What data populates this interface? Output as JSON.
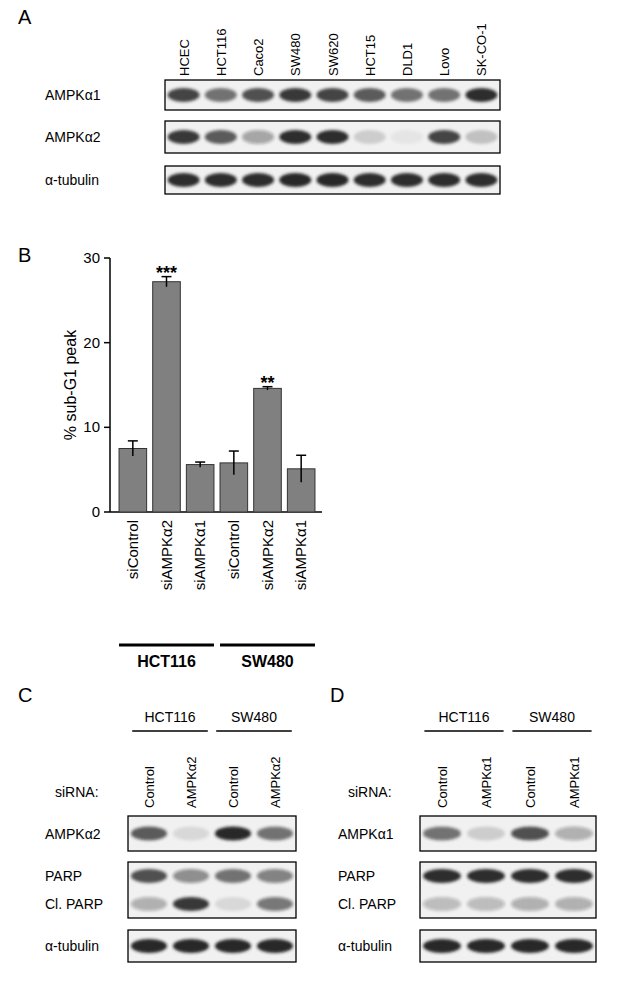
{
  "chart_data": {
    "type": "bar",
    "panel_label": "B",
    "y_label": "% sub-G1 peak",
    "categories": [
      "siControl",
      "siAMPKα2",
      "siAMPKα1",
      "siControl",
      "siAMPKα2",
      "siAMPKα1"
    ],
    "values": [
      7.5,
      27.2,
      5.6,
      5.8,
      14.6,
      5.1
    ],
    "errors": [
      0.9,
      0.6,
      0.3,
      1.4,
      0.2,
      1.6
    ],
    "significance": [
      null,
      "***",
      null,
      null,
      "**",
      null
    ],
    "groups": [
      {
        "name": "HCT116",
        "size": 3
      },
      {
        "name": "SW480",
        "size": 3
      }
    ],
    "color": "#808080",
    "ylim": [
      0,
      30
    ],
    "yticks": [
      0,
      10,
      20,
      30
    ]
  },
  "blots": [
    {
      "panel_label": "A",
      "groups": [
        {
          "lanes": [
            "HCEC",
            "HCT116",
            "Caco2",
            "SW480",
            "SW620",
            "HCT15",
            "DLD1",
            "Lovo",
            "SK-CO-1"
          ]
        }
      ],
      "rows": [
        {
          "bands": [
            {
              "label": "AMPKα1",
              "intensities": [
                0.8,
                0.6,
                0.75,
                0.85,
                0.8,
                0.7,
                0.6,
                0.6,
                0.9
              ]
            }
          ]
        },
        {
          "bands": [
            {
              "label": "AMPKα2",
              "intensities": [
                0.85,
                0.7,
                0.35,
                0.9,
                0.9,
                0.15,
                0.05,
                0.8,
                0.2
              ]
            }
          ]
        },
        {
          "bands": [
            {
              "label": "α-tubulin",
              "intensities": [
                0.9,
                0.9,
                0.9,
                0.95,
                0.95,
                0.9,
                0.9,
                0.9,
                0.9
              ]
            }
          ]
        }
      ]
    },
    {
      "panel_label": "C",
      "lane_title": "siRNA:",
      "groups": [
        {
          "name": "HCT116",
          "lanes": [
            "Control",
            "AMPKα2"
          ]
        },
        {
          "name": "SW480",
          "lanes": [
            "Control",
            "AMPKα2"
          ]
        }
      ],
      "rows": [
        {
          "bands": [
            {
              "label": "AMPKα2",
              "intensities": [
                0.7,
                0.1,
                0.95,
                0.6
              ]
            }
          ]
        },
        {
          "bands": [
            {
              "label": "PARP",
              "intensities": [
                0.75,
                0.45,
                0.6,
                0.5
              ]
            },
            {
              "label": "Cl. PARP",
              "intensities": [
                0.3,
                0.85,
                0.1,
                0.55
              ]
            }
          ]
        },
        {
          "bands": [
            {
              "label": "α-tubulin",
              "intensities": [
                0.95,
                0.95,
                0.95,
                0.95
              ]
            }
          ]
        }
      ]
    },
    {
      "panel_label": "D",
      "lane_title": "siRNA:",
      "groups": [
        {
          "name": "HCT116",
          "lanes": [
            "Control",
            "AMPKα1"
          ]
        },
        {
          "name": "SW480",
          "lanes": [
            "Control",
            "AMPKα1"
          ]
        }
      ],
      "rows": [
        {
          "bands": [
            {
              "label": "AMPKα1",
              "intensities": [
                0.6,
                0.15,
                0.75,
                0.3
              ]
            }
          ]
        },
        {
          "bands": [
            {
              "label": "PARP",
              "intensities": [
                0.9,
                0.9,
                0.9,
                0.9
              ]
            },
            {
              "label": "Cl. PARP",
              "intensities": [
                0.25,
                0.25,
                0.3,
                0.3
              ]
            }
          ]
        },
        {
          "bands": [
            {
              "label": "α-tubulin",
              "intensities": [
                0.95,
                0.95,
                0.95,
                0.95
              ]
            }
          ]
        }
      ]
    }
  ]
}
